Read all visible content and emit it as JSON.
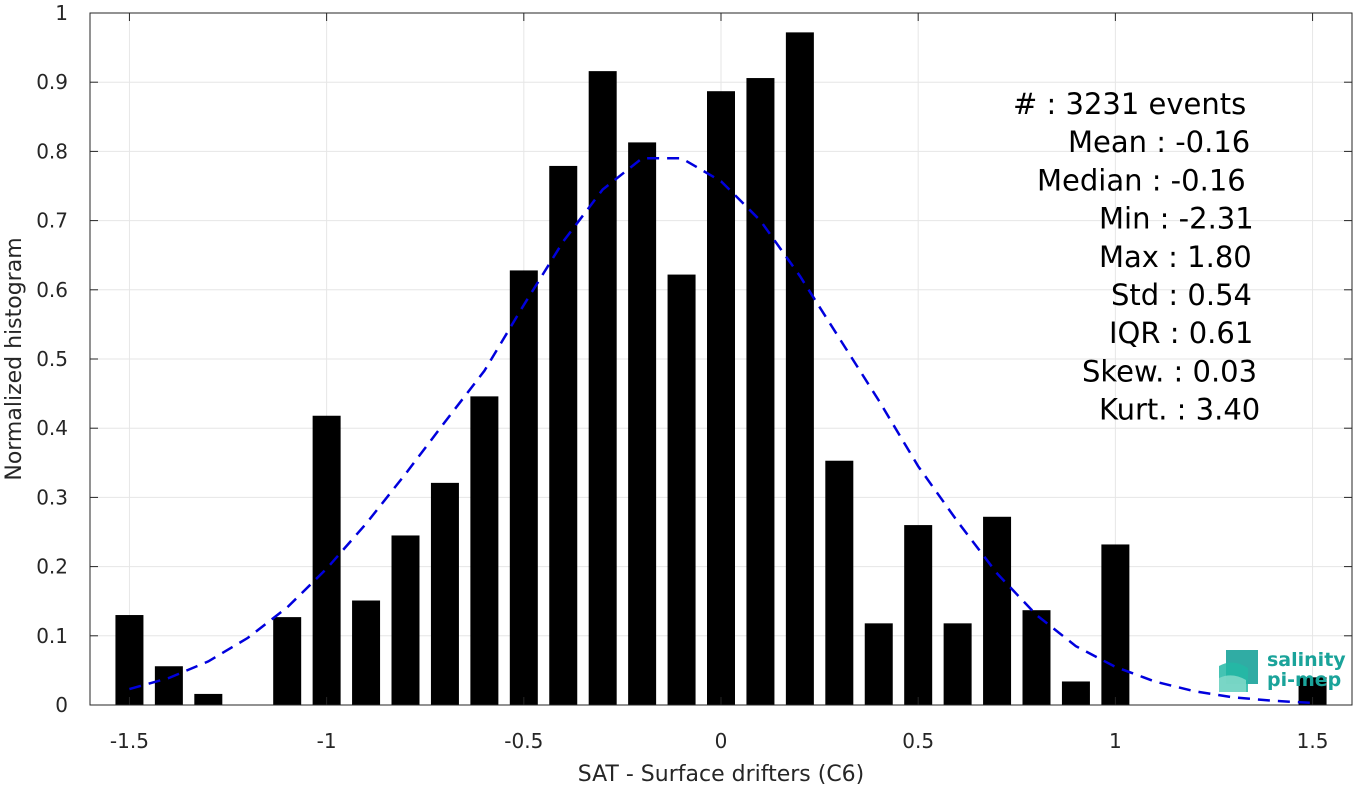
{
  "chart_data": {
    "type": "bar",
    "xlabel": "SAT - Surface drifters (C6)",
    "ylabel": "Normalized histogram",
    "xlim": [
      -1.6,
      1.6
    ],
    "ylim": [
      0,
      1
    ],
    "x_ticks": [
      -1.5,
      -1,
      -0.5,
      0,
      0.5,
      1,
      1.5
    ],
    "x_tick_labels": [
      "-1.5",
      "-1",
      "-0.5",
      "0",
      "0.5",
      "1",
      "1.5"
    ],
    "y_ticks": [
      0,
      0.1,
      0.2,
      0.3,
      0.4,
      0.5,
      0.6,
      0.7,
      0.8,
      0.9,
      1
    ],
    "y_tick_labels": [
      "0",
      "0.1",
      "0.2",
      "0.3",
      "0.4",
      "0.5",
      "0.6",
      "0.7",
      "0.8",
      "0.9",
      "1"
    ],
    "grid": true,
    "bar_color": "#000000",
    "bins": [
      {
        "x": -1.5,
        "y": 0.13
      },
      {
        "x": -1.4,
        "y": 0.056
      },
      {
        "x": -1.3,
        "y": 0.016
      },
      {
        "x": -1.1,
        "y": 0.127
      },
      {
        "x": -1.0,
        "y": 0.418
      },
      {
        "x": -0.9,
        "y": 0.151
      },
      {
        "x": -0.8,
        "y": 0.245
      },
      {
        "x": -0.7,
        "y": 0.321
      },
      {
        "x": -0.6,
        "y": 0.446
      },
      {
        "x": -0.5,
        "y": 0.628
      },
      {
        "x": -0.4,
        "y": 0.779
      },
      {
        "x": -0.3,
        "y": 0.916
      },
      {
        "x": -0.2,
        "y": 0.813
      },
      {
        "x": -0.1,
        "y": 0.622
      },
      {
        "x": 0.0,
        "y": 0.887
      },
      {
        "x": 0.1,
        "y": 0.906
      },
      {
        "x": 0.2,
        "y": 0.972
      },
      {
        "x": 0.3,
        "y": 0.353
      },
      {
        "x": 0.4,
        "y": 0.118
      },
      {
        "x": 0.5,
        "y": 0.26
      },
      {
        "x": 0.6,
        "y": 0.118
      },
      {
        "x": 0.7,
        "y": 0.272
      },
      {
        "x": 0.8,
        "y": 0.137
      },
      {
        "x": 0.9,
        "y": 0.034
      },
      {
        "x": 1.0,
        "y": 0.232
      },
      {
        "x": 1.5,
        "y": 0.04
      }
    ],
    "fit_curve": {
      "style": "dashed",
      "color": "#0000dd",
      "x": [
        -1.5,
        -1.4,
        -1.3,
        -1.2,
        -1.1,
        -1.0,
        -0.9,
        -0.8,
        -0.7,
        -0.6,
        -0.5,
        -0.4,
        -0.3,
        -0.2,
        -0.1,
        0.0,
        0.1,
        0.2,
        0.3,
        0.4,
        0.5,
        0.6,
        0.7,
        0.8,
        0.9,
        1.0,
        1.1,
        1.2,
        1.3,
        1.4,
        1.5
      ],
      "y": [
        0.023,
        0.039,
        0.063,
        0.097,
        0.141,
        0.197,
        0.262,
        0.334,
        0.409,
        0.483,
        0.578,
        0.67,
        0.745,
        0.79,
        0.79,
        0.757,
        0.7,
        0.62,
        0.53,
        0.44,
        0.345,
        0.265,
        0.19,
        0.13,
        0.085,
        0.055,
        0.034,
        0.02,
        0.011,
        0.006,
        0.003
      ]
    },
    "annotations": [
      {
        "label": "#  : 3231 events"
      },
      {
        "label": "Mean : -0.16"
      },
      {
        "label": "Median : -0.16"
      },
      {
        "label": "Min : -2.31"
      },
      {
        "label": "Max : 1.80"
      },
      {
        "label": "Std : 0.54"
      },
      {
        "label": "IQR : 0.61"
      },
      {
        "label": "Skew. : 0.03"
      },
      {
        "label": "Kurt. : 3.40"
      }
    ]
  },
  "logo": {
    "line1": "salinity",
    "line2": "pi-mep",
    "color": "#1aa39a"
  }
}
